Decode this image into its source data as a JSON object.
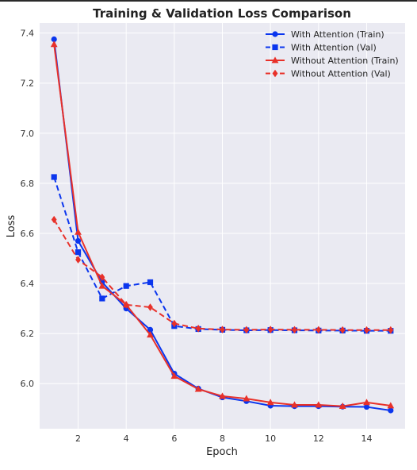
{
  "chart_data": {
    "type": "line",
    "title": "Training & Validation Loss Comparison",
    "xlabel": "Epoch",
    "ylabel": "Loss",
    "xlim": [
      0.4,
      15.6
    ],
    "ylim": [
      5.82,
      7.44
    ],
    "xticks": [
      2,
      4,
      6,
      8,
      10,
      12,
      14
    ],
    "yticks": [
      6.0,
      6.2,
      6.4,
      6.6,
      6.8,
      7.0,
      7.2,
      7.4
    ],
    "grid": true,
    "legend_position": "top-right",
    "x": [
      1,
      2,
      3,
      4,
      5,
      6,
      7,
      8,
      9,
      10,
      11,
      12,
      13,
      14,
      15
    ],
    "series": [
      {
        "name": "With Attention (Train)",
        "color": "#0b36ee",
        "line_style": "solid",
        "marker": "circle",
        "values": [
          7.375,
          6.57,
          6.405,
          6.3,
          6.215,
          6.04,
          5.98,
          5.945,
          5.93,
          5.912,
          5.91,
          5.91,
          5.908,
          5.907,
          5.893
        ]
      },
      {
        "name": "With Attention (Val)",
        "color": "#0b36ee",
        "line_style": "dashed",
        "marker": "square",
        "values": [
          6.825,
          6.525,
          6.34,
          6.39,
          6.405,
          6.23,
          6.218,
          6.215,
          6.213,
          6.214,
          6.213,
          6.212,
          6.212,
          6.211,
          6.211
        ]
      },
      {
        "name": "Without Attention (Train)",
        "color": "#e8312a",
        "line_style": "solid",
        "marker": "triangle",
        "values": [
          7.355,
          6.605,
          6.39,
          6.315,
          6.195,
          6.03,
          5.978,
          5.95,
          5.94,
          5.925,
          5.915,
          5.915,
          5.91,
          5.925,
          5.912
        ]
      },
      {
        "name": "Without Attention (Val)",
        "color": "#e8312a",
        "line_style": "dashed",
        "marker": "diamond",
        "values": [
          6.655,
          6.495,
          6.425,
          6.315,
          6.305,
          6.24,
          6.22,
          6.216,
          6.215,
          6.216,
          6.215,
          6.215,
          6.214,
          6.214,
          6.214
        ]
      }
    ]
  }
}
